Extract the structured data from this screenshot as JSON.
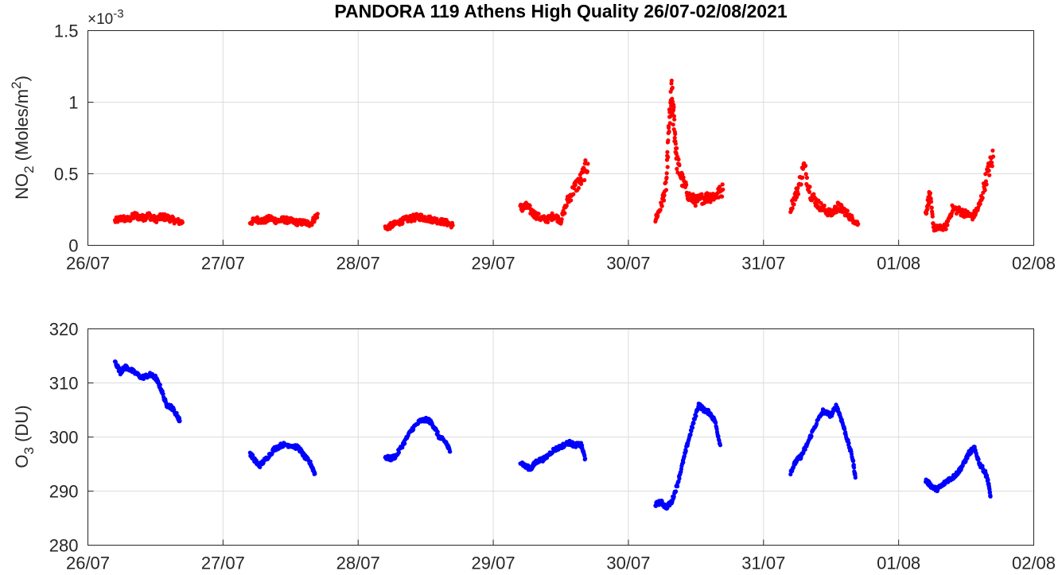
{
  "chart_data": [
    {
      "type": "scatter",
      "title": "PANDORA 119 Athens High Quality 26/07-02/08/2021",
      "ylabel": {
        "main": "NO",
        "sub": "2",
        "rest": " (Moles/m",
        "sup": "2",
        "end": ")"
      },
      "multiplier": {
        "base": "×10",
        "exp": "-3"
      },
      "color": "#ff0000",
      "xlim": [
        "26/07",
        "02/08"
      ],
      "xticks": [
        "26/07",
        "27/07",
        "28/07",
        "29/07",
        "30/07",
        "31/07",
        "01/08",
        "02/08"
      ],
      "ylim": [
        0,
        1.5
      ],
      "yticks": [
        0,
        0.5,
        1,
        1.5
      ],
      "yticklabels": [
        "0",
        "0.5",
        "1",
        "1.5"
      ],
      "y_unit_factor": 0.001,
      "x_units": "day of 26/07-02/08/2021 (0 = 26/07 00:00)",
      "segments": [
        {
          "day": "26/07",
          "points": [
            [
              0.2,
              0.17
            ],
            [
              0.25,
              0.19
            ],
            [
              0.3,
              0.18
            ],
            [
              0.35,
              0.21
            ],
            [
              0.4,
              0.19
            ],
            [
              0.45,
              0.21
            ],
            [
              0.5,
              0.18
            ],
            [
              0.55,
              0.2
            ],
            [
              0.6,
              0.19
            ],
            [
              0.65,
              0.17
            ],
            [
              0.7,
              0.16
            ]
          ]
        },
        {
          "day": "27/07",
          "points": [
            [
              0.2,
              0.16
            ],
            [
              0.25,
              0.18
            ],
            [
              0.3,
              0.17
            ],
            [
              0.35,
              0.19
            ],
            [
              0.4,
              0.17
            ],
            [
              0.45,
              0.18
            ],
            [
              0.5,
              0.17
            ],
            [
              0.55,
              0.16
            ],
            [
              0.6,
              0.16
            ],
            [
              0.65,
              0.15
            ],
            [
              0.7,
              0.22
            ]
          ]
        },
        {
          "day": "28/07",
          "points": [
            [
              0.2,
              0.12
            ],
            [
              0.25,
              0.14
            ],
            [
              0.3,
              0.16
            ],
            [
              0.35,
              0.18
            ],
            [
              0.4,
              0.19
            ],
            [
              0.45,
              0.2
            ],
            [
              0.5,
              0.19
            ],
            [
              0.55,
              0.18
            ],
            [
              0.6,
              0.17
            ],
            [
              0.65,
              0.16
            ],
            [
              0.7,
              0.14
            ]
          ]
        },
        {
          "day": "29/07",
          "points": [
            [
              0.2,
              0.26
            ],
            [
              0.25,
              0.27
            ],
            [
              0.3,
              0.22
            ],
            [
              0.35,
              0.19
            ],
            [
              0.4,
              0.18
            ],
            [
              0.45,
              0.21
            ],
            [
              0.5,
              0.17
            ],
            [
              0.55,
              0.31
            ],
            [
              0.6,
              0.4
            ],
            [
              0.65,
              0.46
            ],
            [
              0.7,
              0.57
            ]
          ]
        },
        {
          "day": "30/07",
          "points": [
            [
              0.2,
              0.18
            ],
            [
              0.24,
              0.27
            ],
            [
              0.28,
              0.42
            ],
            [
              0.3,
              0.82
            ],
            [
              0.32,
              1.05
            ],
            [
              0.34,
              0.83
            ],
            [
              0.36,
              0.58
            ],
            [
              0.4,
              0.45
            ],
            [
              0.45,
              0.34
            ],
            [
              0.5,
              0.31
            ],
            [
              0.55,
              0.33
            ],
            [
              0.6,
              0.34
            ],
            [
              0.65,
              0.35
            ],
            [
              0.7,
              0.39
            ]
          ]
        },
        {
          "day": "31/07",
          "points": [
            [
              0.2,
              0.26
            ],
            [
              0.25,
              0.38
            ],
            [
              0.3,
              0.55
            ],
            [
              0.35,
              0.36
            ],
            [
              0.4,
              0.29
            ],
            [
              0.45,
              0.25
            ],
            [
              0.5,
              0.22
            ],
            [
              0.55,
              0.27
            ],
            [
              0.6,
              0.24
            ],
            [
              0.65,
              0.19
            ],
            [
              0.7,
              0.15
            ]
          ]
        },
        {
          "day": "01/08",
          "points": [
            [
              0.2,
              0.22
            ],
            [
              0.23,
              0.36
            ],
            [
              0.26,
              0.12
            ],
            [
              0.3,
              0.12
            ],
            [
              0.35,
              0.13
            ],
            [
              0.4,
              0.26
            ],
            [
              0.45,
              0.24
            ],
            [
              0.5,
              0.22
            ],
            [
              0.55,
              0.2
            ],
            [
              0.6,
              0.28
            ],
            [
              0.65,
              0.48
            ],
            [
              0.7,
              0.62
            ]
          ]
        }
      ]
    },
    {
      "type": "scatter",
      "ylabel": {
        "main": "O",
        "sub": "3",
        "rest": " (DU)"
      },
      "color": "#0000ff",
      "xlim": [
        "26/07",
        "02/08"
      ],
      "xticks": [
        "26/07",
        "27/07",
        "28/07",
        "29/07",
        "30/07",
        "31/07",
        "01/08",
        "02/08"
      ],
      "ylim": [
        280,
        320
      ],
      "yticks": [
        280,
        290,
        300,
        310,
        320
      ],
      "yticklabels": [
        "280",
        "290",
        "300",
        "310",
        "320"
      ],
      "x_units": "day of 26/07-02/08/2021 (0 = 26/07 00:00)",
      "segments": [
        {
          "day": "26/07",
          "points": [
            [
              0.2,
              314
            ],
            [
              0.24,
              312
            ],
            [
              0.28,
              313
            ],
            [
              0.34,
              312
            ],
            [
              0.4,
              311
            ],
            [
              0.46,
              311.5
            ],
            [
              0.5,
              311
            ],
            [
              0.54,
              309
            ],
            [
              0.58,
              306
            ],
            [
              0.62,
              305.5
            ],
            [
              0.66,
              304
            ],
            [
              0.68,
              303
            ]
          ]
        },
        {
          "day": "27/07",
          "points": [
            [
              0.2,
              297
            ],
            [
              0.24,
              295.5
            ],
            [
              0.27,
              294.7
            ],
            [
              0.32,
              296
            ],
            [
              0.38,
              297.8
            ],
            [
              0.44,
              298.6
            ],
            [
              0.5,
              298.5
            ],
            [
              0.56,
              298
            ],
            [
              0.6,
              296.5
            ],
            [
              0.65,
              295
            ],
            [
              0.68,
              293.2
            ]
          ]
        },
        {
          "day": "28/07",
          "points": [
            [
              0.2,
              296.3
            ],
            [
              0.24,
              296
            ],
            [
              0.28,
              296.5
            ],
            [
              0.34,
              299
            ],
            [
              0.4,
              301.5
            ],
            [
              0.46,
              303
            ],
            [
              0.52,
              303.2
            ],
            [
              0.56,
              302
            ],
            [
              0.6,
              300
            ],
            [
              0.65,
              299
            ],
            [
              0.68,
              297.3
            ]
          ]
        },
        {
          "day": "29/07",
          "points": [
            [
              0.2,
              295.5
            ],
            [
              0.24,
              294.5
            ],
            [
              0.28,
              294.2
            ],
            [
              0.32,
              295.5
            ],
            [
              0.38,
              296
            ],
            [
              0.44,
              297.5
            ],
            [
              0.5,
              298.2
            ],
            [
              0.56,
              299
            ],
            [
              0.6,
              298.5
            ],
            [
              0.65,
              298.6
            ],
            [
              0.68,
              296
            ]
          ]
        },
        {
          "day": "30/07",
          "points": [
            [
              0.2,
              287.5
            ],
            [
              0.24,
              288
            ],
            [
              0.28,
              287
            ],
            [
              0.32,
              288
            ],
            [
              0.36,
              291
            ],
            [
              0.4,
              295
            ],
            [
              0.44,
              299
            ],
            [
              0.48,
              302.5
            ],
            [
              0.52,
              306
            ],
            [
              0.56,
              305
            ],
            [
              0.6,
              304.5
            ],
            [
              0.64,
              303
            ],
            [
              0.68,
              298.5
            ]
          ]
        },
        {
          "day": "31/07",
          "points": [
            [
              0.2,
              293.5
            ],
            [
              0.24,
              295.5
            ],
            [
              0.28,
              296.5
            ],
            [
              0.32,
              298.5
            ],
            [
              0.38,
              302
            ],
            [
              0.44,
              304.8
            ],
            [
              0.5,
              304
            ],
            [
              0.54,
              305.8
            ],
            [
              0.58,
              303
            ],
            [
              0.62,
              299.5
            ],
            [
              0.66,
              296
            ],
            [
              0.68,
              292.5
            ]
          ]
        },
        {
          "day": "01/08",
          "points": [
            [
              0.2,
              292
            ],
            [
              0.24,
              291
            ],
            [
              0.28,
              290.3
            ],
            [
              0.32,
              291
            ],
            [
              0.36,
              292
            ],
            [
              0.4,
              292.5
            ],
            [
              0.44,
              293.5
            ],
            [
              0.48,
              295
            ],
            [
              0.52,
              297
            ],
            [
              0.56,
              298
            ],
            [
              0.6,
              295
            ],
            [
              0.64,
              293.5
            ],
            [
              0.66,
              292
            ],
            [
              0.68,
              289
            ]
          ]
        }
      ]
    }
  ]
}
